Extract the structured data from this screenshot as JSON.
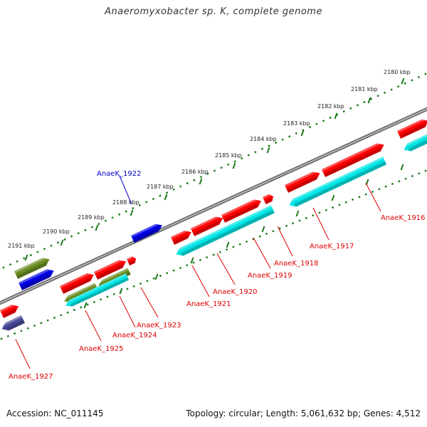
{
  "title": "Anaeromyxobacter sp. K, complete genome",
  "footer": {
    "accession": "Accession: NC_011145",
    "summary": "Topology: circular; Length: 5,061,632 bp; Genes: 4,512"
  },
  "colors": {
    "red_gene": "#ff0000",
    "cyan_gene": "#00e5e5",
    "blue_gene": "#0000e6",
    "olive_gene": "#6b8e23",
    "slate_gene": "#4a4a9a",
    "backbone": "#808080",
    "tick_green": "#1a7a1a",
    "label_red": "#e00000",
    "label_blue": "#0000cc"
  },
  "kbp_ticks": [
    {
      "label": "2180 kbp"
    },
    {
      "label": "2181 kbp"
    },
    {
      "label": "2182 kbp"
    },
    {
      "label": "2183 kbp"
    },
    {
      "label": "2184 kbp"
    },
    {
      "label": "2185 kbp"
    },
    {
      "label": "2186 kbp"
    },
    {
      "label": "2187 kbp"
    },
    {
      "label": "2188 kbp"
    },
    {
      "label": "2189 kbp"
    },
    {
      "label": "2190 kbp"
    },
    {
      "label": "2191 kbp"
    }
  ],
  "gene_labels": [
    {
      "text": "AnaeK_1916",
      "color": "red"
    },
    {
      "text": "AnaeK_1917",
      "color": "red"
    },
    {
      "text": "AnaeK_1918",
      "color": "red"
    },
    {
      "text": "AnaeK_1919",
      "color": "red"
    },
    {
      "text": "AnaeK_1920",
      "color": "red"
    },
    {
      "text": "AnaeK_1921",
      "color": "red"
    },
    {
      "text": "AnaeK_1922",
      "color": "blue"
    },
    {
      "text": "AnaeK_1923",
      "color": "red"
    },
    {
      "text": "AnaeK_1924",
      "color": "red"
    },
    {
      "text": "AnaeK_1925",
      "color": "red"
    },
    {
      "text": "AnaeK_1927",
      "color": "red"
    }
  ]
}
